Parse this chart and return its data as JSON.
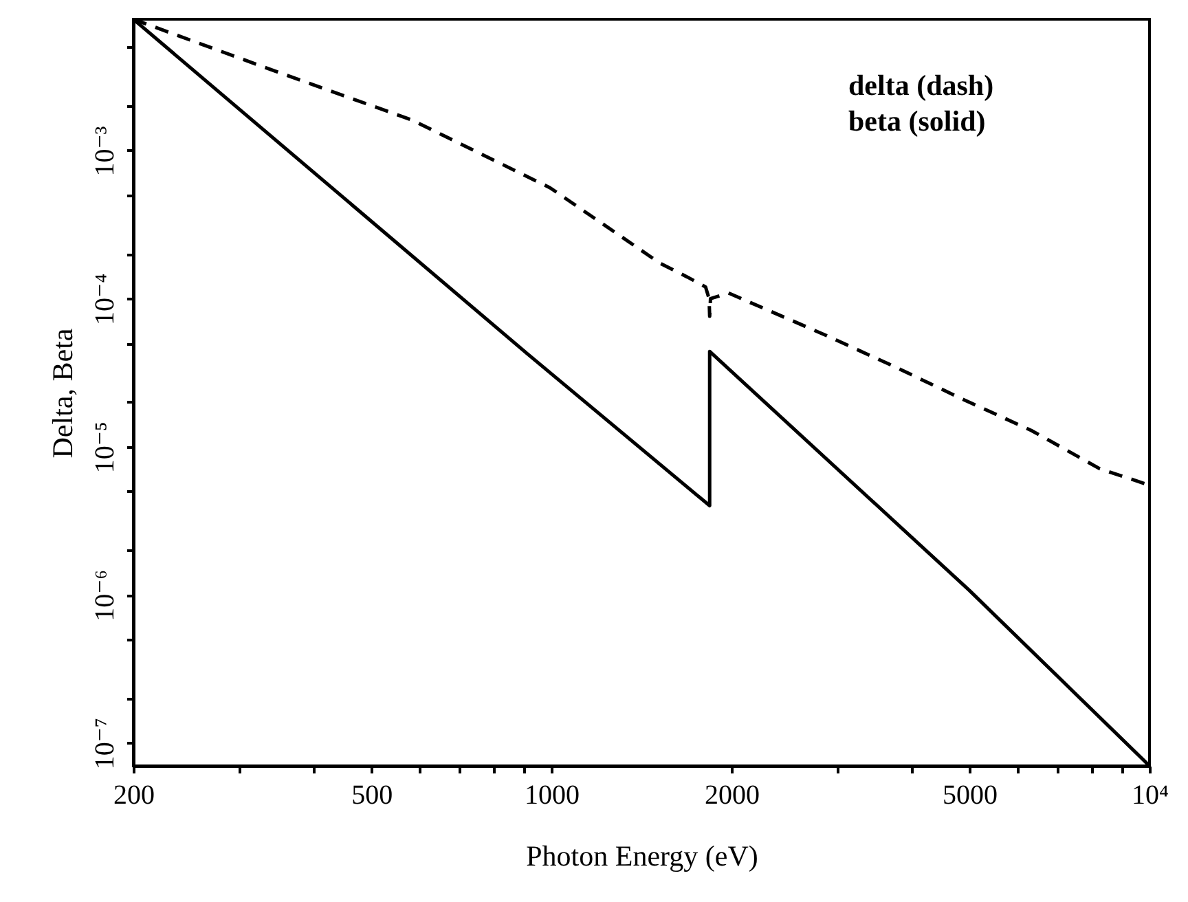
{
  "chart_data": {
    "type": "line",
    "xlabel": "Photon Energy (eV)",
    "ylabel": "Delta, Beta",
    "log": "xy",
    "grid": false,
    "annotations": [
      "delta (dash)",
      "beta (solid)"
    ],
    "xlim": [
      200,
      10000
    ],
    "ylim": [
      7e-08,
      0.0077
    ],
    "xticks": [
      200,
      {
        "value": 300,
        "label": null
      },
      {
        "value": 400,
        "label": null
      },
      500,
      {
        "value": 600,
        "label": null
      },
      {
        "value": 700,
        "label": null
      },
      {
        "value": 800,
        "label": null
      },
      {
        "value": 900,
        "label": null
      },
      1000,
      2000,
      {
        "value": 3000,
        "label": null
      },
      {
        "value": 4000,
        "label": null
      },
      5000,
      {
        "value": 6000,
        "label": null
      },
      {
        "value": 7000,
        "label": null
      },
      {
        "value": 8000,
        "label": null
      },
      {
        "value": 9000,
        "label": null
      },
      {
        "value": 10000,
        "label": "10⁴"
      }
    ],
    "yticks": [
      {
        "value": 1e-07,
        "label": "10⁻⁷"
      },
      {
        "value": 2e-07,
        "label": null
      },
      {
        "value": 5e-07,
        "label": null
      },
      {
        "value": 1e-06,
        "label": "10⁻⁶"
      },
      {
        "value": 2e-06,
        "label": null
      },
      {
        "value": 5e-06,
        "label": null
      },
      {
        "value": 1e-05,
        "label": "10⁻⁵"
      },
      {
        "value": 2e-05,
        "label": null
      },
      {
        "value": 5e-05,
        "label": null
      },
      {
        "value": 0.0001,
        "label": "10⁻⁴"
      },
      {
        "value": 0.0002,
        "label": null
      },
      {
        "value": 0.0005,
        "label": null
      },
      {
        "value": 0.001,
        "label": "10⁻³"
      },
      {
        "value": 0.002,
        "label": null
      },
      {
        "value": 0.005,
        "label": null
      }
    ],
    "series": [
      {
        "color": "#000000",
        "line_style": "dashed",
        "x": [
          200,
          345,
          586,
          995,
          1295,
          1517,
          1687,
          1810,
          1835,
          1839,
          1845,
          1978,
          2864,
          3733,
          4864,
          6340,
          8260,
          10000
        ],
        "values": [
          0.0077,
          0.00344,
          0.0016,
          0.00056,
          0.00027,
          0.000174,
          0.00014,
          0.00012,
          0.0001,
          7.6e-05,
          0.0001,
          0.000109,
          5.7e-05,
          3.5e-05,
          2.1e-05,
          1.29e-05,
          7.1e-06,
          5.5e-06
        ]
      },
      {
        "color": "#000000",
        "line_style": "solid",
        "x": [
          200,
          908,
          1839,
          1839,
          5000,
          10000
        ],
        "values": [
          0.0077,
          4.3e-05,
          4e-06,
          4.4e-05,
          1.07e-06,
          7e-08
        ]
      }
    ]
  }
}
